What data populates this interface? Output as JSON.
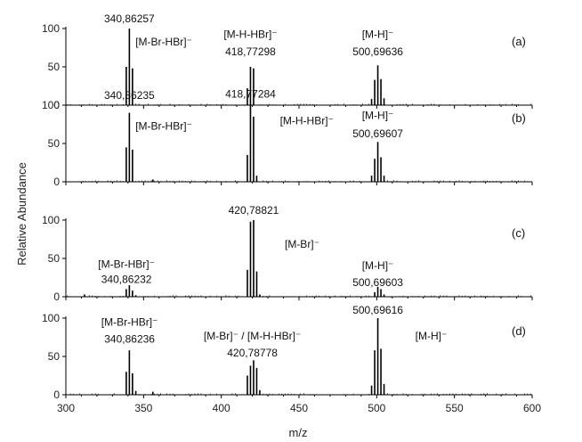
{
  "chart_data": {
    "type": "bar",
    "xlabel": "m/z",
    "ylabel": "Relative Abundance",
    "xlim": [
      300,
      600
    ],
    "xticks": [
      "300",
      "350",
      "400",
      "450",
      "500",
      "550",
      "600"
    ],
    "ylim": [
      0,
      100
    ],
    "yticks": [
      "0",
      "50",
      "100"
    ],
    "panels": [
      {
        "panel_label": "(a)",
        "peaks": [
          {
            "mz": 338.86,
            "intensity": 50
          },
          {
            "mz": 340.86,
            "intensity": 100
          },
          {
            "mz": 342.86,
            "intensity": 48
          },
          {
            "mz": 416.77,
            "intensity": 22
          },
          {
            "mz": 418.77,
            "intensity": 50
          },
          {
            "mz": 420.77,
            "intensity": 48
          },
          {
            "mz": 496.7,
            "intensity": 8
          },
          {
            "mz": 498.7,
            "intensity": 33
          },
          {
            "mz": 500.7,
            "intensity": 52
          },
          {
            "mz": 502.7,
            "intensity": 34
          },
          {
            "mz": 504.7,
            "intensity": 9
          }
        ],
        "annotations": [
          {
            "text": "340,86257",
            "mz": 340.86,
            "rel": 108
          },
          {
            "text": "[M-Br-HBr]⁻",
            "mz": 363,
            "rel": 78
          },
          {
            "text": "[M-H-HBr]⁻",
            "mz": 418.8,
            "rel": 88
          },
          {
            "text": "418,77298",
            "mz": 418.8,
            "rel": 65
          },
          {
            "text": "[M-H]⁻",
            "mz": 500.7,
            "rel": 88
          },
          {
            "text": "500,69636",
            "mz": 500.7,
            "rel": 65
          }
        ]
      },
      {
        "panel_label": "(b)",
        "peaks": [
          {
            "mz": 338.86,
            "intensity": 45
          },
          {
            "mz": 340.86,
            "intensity": 90
          },
          {
            "mz": 342.86,
            "intensity": 42
          },
          {
            "mz": 356.0,
            "intensity": 3
          },
          {
            "mz": 416.77,
            "intensity": 35
          },
          {
            "mz": 418.77,
            "intensity": 100
          },
          {
            "mz": 420.77,
            "intensity": 85
          },
          {
            "mz": 422.77,
            "intensity": 8
          },
          {
            "mz": 496.7,
            "intensity": 8
          },
          {
            "mz": 498.7,
            "intensity": 30
          },
          {
            "mz": 500.7,
            "intensity": 52
          },
          {
            "mz": 502.7,
            "intensity": 32
          },
          {
            "mz": 504.7,
            "intensity": 8
          }
        ],
        "annotations": [
          {
            "text": "340,86235",
            "mz": 340.86,
            "rel": 108
          },
          {
            "text": "[M-Br-HBr]⁻",
            "mz": 363,
            "rel": 68
          },
          {
            "text": "418,77284",
            "mz": 418.8,
            "rel": 110
          },
          {
            "text": "[M-H-HBr]⁻",
            "mz": 455,
            "rel": 75
          },
          {
            "text": "[M-H]⁻",
            "mz": 500.7,
            "rel": 82
          },
          {
            "text": "500,69607",
            "mz": 500.7,
            "rel": 58
          }
        ]
      },
      {
        "panel_label": "(c)",
        "peaks": [
          {
            "mz": 312.0,
            "intensity": 3
          },
          {
            "mz": 338.86,
            "intensity": 10
          },
          {
            "mz": 340.86,
            "intensity": 15
          },
          {
            "mz": 342.86,
            "intensity": 8
          },
          {
            "mz": 345.0,
            "intensity": 2
          },
          {
            "mz": 416.79,
            "intensity": 35
          },
          {
            "mz": 418.79,
            "intensity": 98
          },
          {
            "mz": 420.79,
            "intensity": 100
          },
          {
            "mz": 422.79,
            "intensity": 33
          },
          {
            "mz": 424.79,
            "intensity": 3
          },
          {
            "mz": 498.7,
            "intensity": 6
          },
          {
            "mz": 500.7,
            "intensity": 13
          },
          {
            "mz": 502.7,
            "intensity": 10
          },
          {
            "mz": 504.7,
            "intensity": 3
          }
        ],
        "annotations": [
          {
            "text": "420,78821",
            "mz": 420.8,
            "rel": 108
          },
          {
            "text": "[M-Br]⁻",
            "mz": 452,
            "rel": 64
          },
          {
            "text": "[M-Br-HBr]⁻",
            "mz": 339,
            "rel": 38
          },
          {
            "text": "340,86232",
            "mz": 339,
            "rel": 18
          },
          {
            "text": "[M-H]⁻",
            "mz": 500.7,
            "rel": 36
          },
          {
            "text": "500,69603",
            "mz": 500.7,
            "rel": 14
          }
        ]
      },
      {
        "panel_label": "(d)",
        "peaks": [
          {
            "mz": 338.86,
            "intensity": 30
          },
          {
            "mz": 340.86,
            "intensity": 58
          },
          {
            "mz": 342.86,
            "intensity": 28
          },
          {
            "mz": 345.0,
            "intensity": 5
          },
          {
            "mz": 356.0,
            "intensity": 4
          },
          {
            "mz": 416.78,
            "intensity": 25
          },
          {
            "mz": 418.78,
            "intensity": 38
          },
          {
            "mz": 420.78,
            "intensity": 45
          },
          {
            "mz": 422.78,
            "intensity": 35
          },
          {
            "mz": 424.78,
            "intensity": 6
          },
          {
            "mz": 496.7,
            "intensity": 12
          },
          {
            "mz": 498.7,
            "intensity": 58
          },
          {
            "mz": 500.7,
            "intensity": 100
          },
          {
            "mz": 502.7,
            "intensity": 60
          },
          {
            "mz": 504.7,
            "intensity": 14
          }
        ],
        "annotations": [
          {
            "text": "[M-Br-HBr]⁻",
            "mz": 341,
            "rel": 90
          },
          {
            "text": "340,86236",
            "mz": 341,
            "rel": 68
          },
          {
            "text": "[M-Br]⁻ / [M-H-HBr]⁻",
            "mz": 420,
            "rel": 72
          },
          {
            "text": "420,78778",
            "mz": 420,
            "rel": 50
          },
          {
            "text": "500,69616",
            "mz": 500.7,
            "rel": 106
          },
          {
            "text": "[M-H]⁻",
            "mz": 535,
            "rel": 72
          }
        ]
      }
    ]
  }
}
